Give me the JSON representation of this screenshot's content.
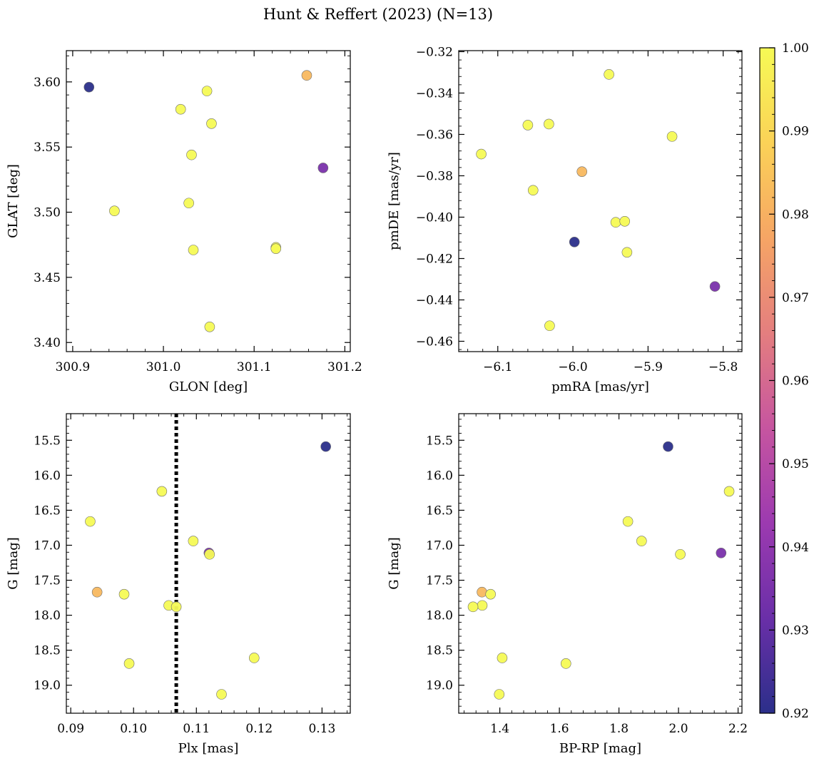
{
  "title": "Hunt & Reffert (2023) (N=13)",
  "colorbar": {
    "min": 0.92,
    "max": 1.0,
    "ticks": [
      "0.92",
      "0.93",
      "0.94",
      "0.95",
      "0.96",
      "0.97",
      "0.98",
      "0.99",
      "1.00"
    ],
    "tick_values": [
      0.92,
      0.93,
      0.94,
      0.95,
      0.96,
      0.97,
      0.98,
      0.99,
      1.0
    ],
    "colormap": "plasma (truncated)",
    "stops": [
      "#2b2f8a",
      "#6a2fa8",
      "#9c3ab0",
      "#c655a0",
      "#e47e7f",
      "#f6a565",
      "#fbd257",
      "#f6fa55"
    ]
  },
  "chart_data": [
    {
      "type": "scatter",
      "id": "glon-glat",
      "xlabel": "GLON [deg]",
      "ylabel": "GLAT [deg]",
      "xlim": [
        300.893,
        301.206
      ],
      "ylim": [
        3.393,
        3.624
      ],
      "yinvert": false,
      "xticks": [
        300.9,
        301.0,
        301.1,
        301.2
      ],
      "xticklabels": [
        "300.9",
        "301.0",
        "301.1",
        "301.2"
      ],
      "yticks": [
        3.4,
        3.45,
        3.5,
        3.55,
        3.6
      ],
      "yticklabels": [
        "3.40",
        "3.45",
        "3.50",
        "3.55",
        "3.60"
      ],
      "points": [
        {
          "x": 300.918,
          "y": 3.596,
          "c": 0.92
        },
        {
          "x": 301.158,
          "y": 3.605,
          "c": 0.982
        },
        {
          "x": 301.048,
          "y": 3.593,
          "c": 1.0
        },
        {
          "x": 301.019,
          "y": 3.579,
          "c": 1.0
        },
        {
          "x": 301.053,
          "y": 3.568,
          "c": 1.0
        },
        {
          "x": 301.031,
          "y": 3.544,
          "c": 1.0
        },
        {
          "x": 301.176,
          "y": 3.534,
          "c": 0.935
        },
        {
          "x": 301.028,
          "y": 3.507,
          "c": 1.0
        },
        {
          "x": 300.946,
          "y": 3.501,
          "c": 1.0
        },
        {
          "x": 301.124,
          "y": 3.473,
          "c": 1.0
        },
        {
          "x": 301.124,
          "y": 3.472,
          "c": 1.0
        },
        {
          "x": 301.033,
          "y": 3.471,
          "c": 1.0
        },
        {
          "x": 301.051,
          "y": 3.412,
          "c": 1.0
        }
      ]
    },
    {
      "type": "scatter",
      "id": "pmra-pmde",
      "xlabel": "pmRA [mas/yr]",
      "ylabel": "pmDE [mas/yr]",
      "xlim": [
        -6.152,
        -5.775
      ],
      "ylim": [
        -0.465,
        -0.3195
      ],
      "yinvert": false,
      "xticks": [
        -6.1,
        -6.0,
        -5.9,
        -5.8
      ],
      "xticklabels": [
        "−6.1",
        "−6.0",
        "−5.9",
        "−5.8"
      ],
      "yticks": [
        -0.46,
        -0.44,
        -0.42,
        -0.4,
        -0.38,
        -0.36,
        -0.34,
        -0.32
      ],
      "yticklabels": [
        "−0.46",
        "−0.44",
        "−0.42",
        "−0.40",
        "−0.38",
        "−0.36",
        "−0.34",
        "−0.32"
      ],
      "points": [
        {
          "x": -5.952,
          "y": -0.331,
          "c": 1.0
        },
        {
          "x": -6.06,
          "y": -0.3555,
          "c": 1.0
        },
        {
          "x": -6.032,
          "y": -0.355,
          "c": 1.0
        },
        {
          "x": -5.868,
          "y": -0.361,
          "c": 1.0
        },
        {
          "x": -6.122,
          "y": -0.3695,
          "c": 1.0
        },
        {
          "x": -5.988,
          "y": -0.378,
          "c": 0.982
        },
        {
          "x": -6.053,
          "y": -0.387,
          "c": 1.0
        },
        {
          "x": -5.943,
          "y": -0.4025,
          "c": 1.0
        },
        {
          "x": -5.931,
          "y": -0.402,
          "c": 1.0
        },
        {
          "x": -5.998,
          "y": -0.412,
          "c": 0.92
        },
        {
          "x": -5.928,
          "y": -0.417,
          "c": 1.0
        },
        {
          "x": -5.811,
          "y": -0.4335,
          "c": 0.935
        },
        {
          "x": -6.031,
          "y": -0.4525,
          "c": 1.0
        }
      ]
    },
    {
      "type": "scatter",
      "id": "plx-g",
      "xlabel": "Plx [mas]",
      "ylabel": "G [mag]",
      "xlim": [
        0.0893,
        0.1345
      ],
      "ylim": [
        15.12,
        19.4
      ],
      "yinvert": true,
      "xticks": [
        0.09,
        0.1,
        0.11,
        0.12,
        0.13
      ],
      "xticklabels": [
        "0.09",
        "0.10",
        "0.11",
        "0.12",
        "0.13"
      ],
      "yticks": [
        15.5,
        16.0,
        16.5,
        17.0,
        17.5,
        18.0,
        18.5,
        19.0
      ],
      "yticklabels": [
        "15.5",
        "16.0",
        "16.5",
        "17.0",
        "17.5",
        "18.0",
        "18.5",
        "19.0"
      ],
      "vline": {
        "x": 0.1068,
        "style": "dotted"
      },
      "points": [
        {
          "x": 0.1306,
          "y": 15.59,
          "c": 0.92
        },
        {
          "x": 0.1045,
          "y": 16.23,
          "c": 1.0
        },
        {
          "x": 0.0931,
          "y": 16.66,
          "c": 1.0
        },
        {
          "x": 0.1095,
          "y": 16.94,
          "c": 1.0
        },
        {
          "x": 0.112,
          "y": 17.11,
          "c": 0.935
        },
        {
          "x": 0.1121,
          "y": 17.13,
          "c": 1.0
        },
        {
          "x": 0.0942,
          "y": 17.67,
          "c": 0.982
        },
        {
          "x": 0.0985,
          "y": 17.7,
          "c": 1.0
        },
        {
          "x": 0.1056,
          "y": 17.86,
          "c": 1.0
        },
        {
          "x": 0.1068,
          "y": 17.88,
          "c": 1.0
        },
        {
          "x": 0.0993,
          "y": 18.69,
          "c": 1.0
        },
        {
          "x": 0.1192,
          "y": 18.61,
          "c": 1.0
        },
        {
          "x": 0.114,
          "y": 19.13,
          "c": 1.0
        }
      ]
    },
    {
      "type": "scatter",
      "id": "bprp-g",
      "xlabel": "BP-RP [mag]",
      "ylabel": "G [mag]",
      "xlim": [
        1.262,
        2.213
      ],
      "ylim": [
        15.12,
        19.4
      ],
      "yinvert": true,
      "xticks": [
        1.4,
        1.6,
        1.8,
        2.0,
        2.2
      ],
      "xticklabels": [
        "1.4",
        "1.6",
        "1.8",
        "2.0",
        "2.2"
      ],
      "yticks": [
        15.5,
        16.0,
        16.5,
        17.0,
        17.5,
        18.0,
        18.5,
        19.0
      ],
      "yticklabels": [
        "15.5",
        "16.0",
        "16.5",
        "17.0",
        "17.5",
        "18.0",
        "18.5",
        "19.0"
      ],
      "points": [
        {
          "x": 1.965,
          "y": 15.59,
          "c": 0.92
        },
        {
          "x": 2.17,
          "y": 16.23,
          "c": 1.0
        },
        {
          "x": 1.83,
          "y": 16.66,
          "c": 1.0
        },
        {
          "x": 1.876,
          "y": 16.94,
          "c": 1.0
        },
        {
          "x": 2.143,
          "y": 17.11,
          "c": 0.935
        },
        {
          "x": 2.006,
          "y": 17.13,
          "c": 1.0
        },
        {
          "x": 1.34,
          "y": 17.67,
          "c": 0.982
        },
        {
          "x": 1.369,
          "y": 17.7,
          "c": 1.0
        },
        {
          "x": 1.341,
          "y": 17.86,
          "c": 1.0
        },
        {
          "x": 1.31,
          "y": 17.88,
          "c": 1.0
        },
        {
          "x": 1.622,
          "y": 18.69,
          "c": 1.0
        },
        {
          "x": 1.408,
          "y": 18.61,
          "c": 1.0
        },
        {
          "x": 1.398,
          "y": 19.13,
          "c": 1.0
        }
      ]
    }
  ]
}
